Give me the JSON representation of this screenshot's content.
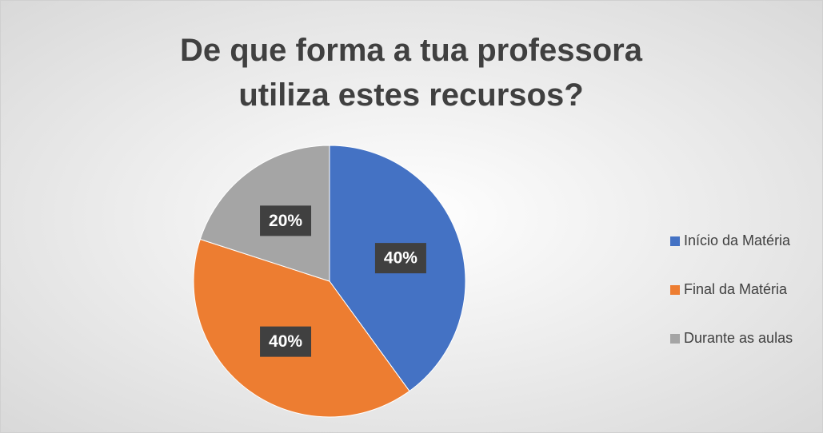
{
  "chart_data": {
    "type": "pie",
    "title": "De que forma a tua professora utiliza estes recursos?",
    "categories": [
      "Início da Matéria",
      "Final da Matéria",
      "Durante as aulas"
    ],
    "values": [
      40,
      40,
      20
    ],
    "value_labels": [
      "40%",
      "40%",
      "20%"
    ],
    "colors": [
      "#4472c4",
      "#ed7d31",
      "#a5a5a5"
    ],
    "legend": "right"
  }
}
